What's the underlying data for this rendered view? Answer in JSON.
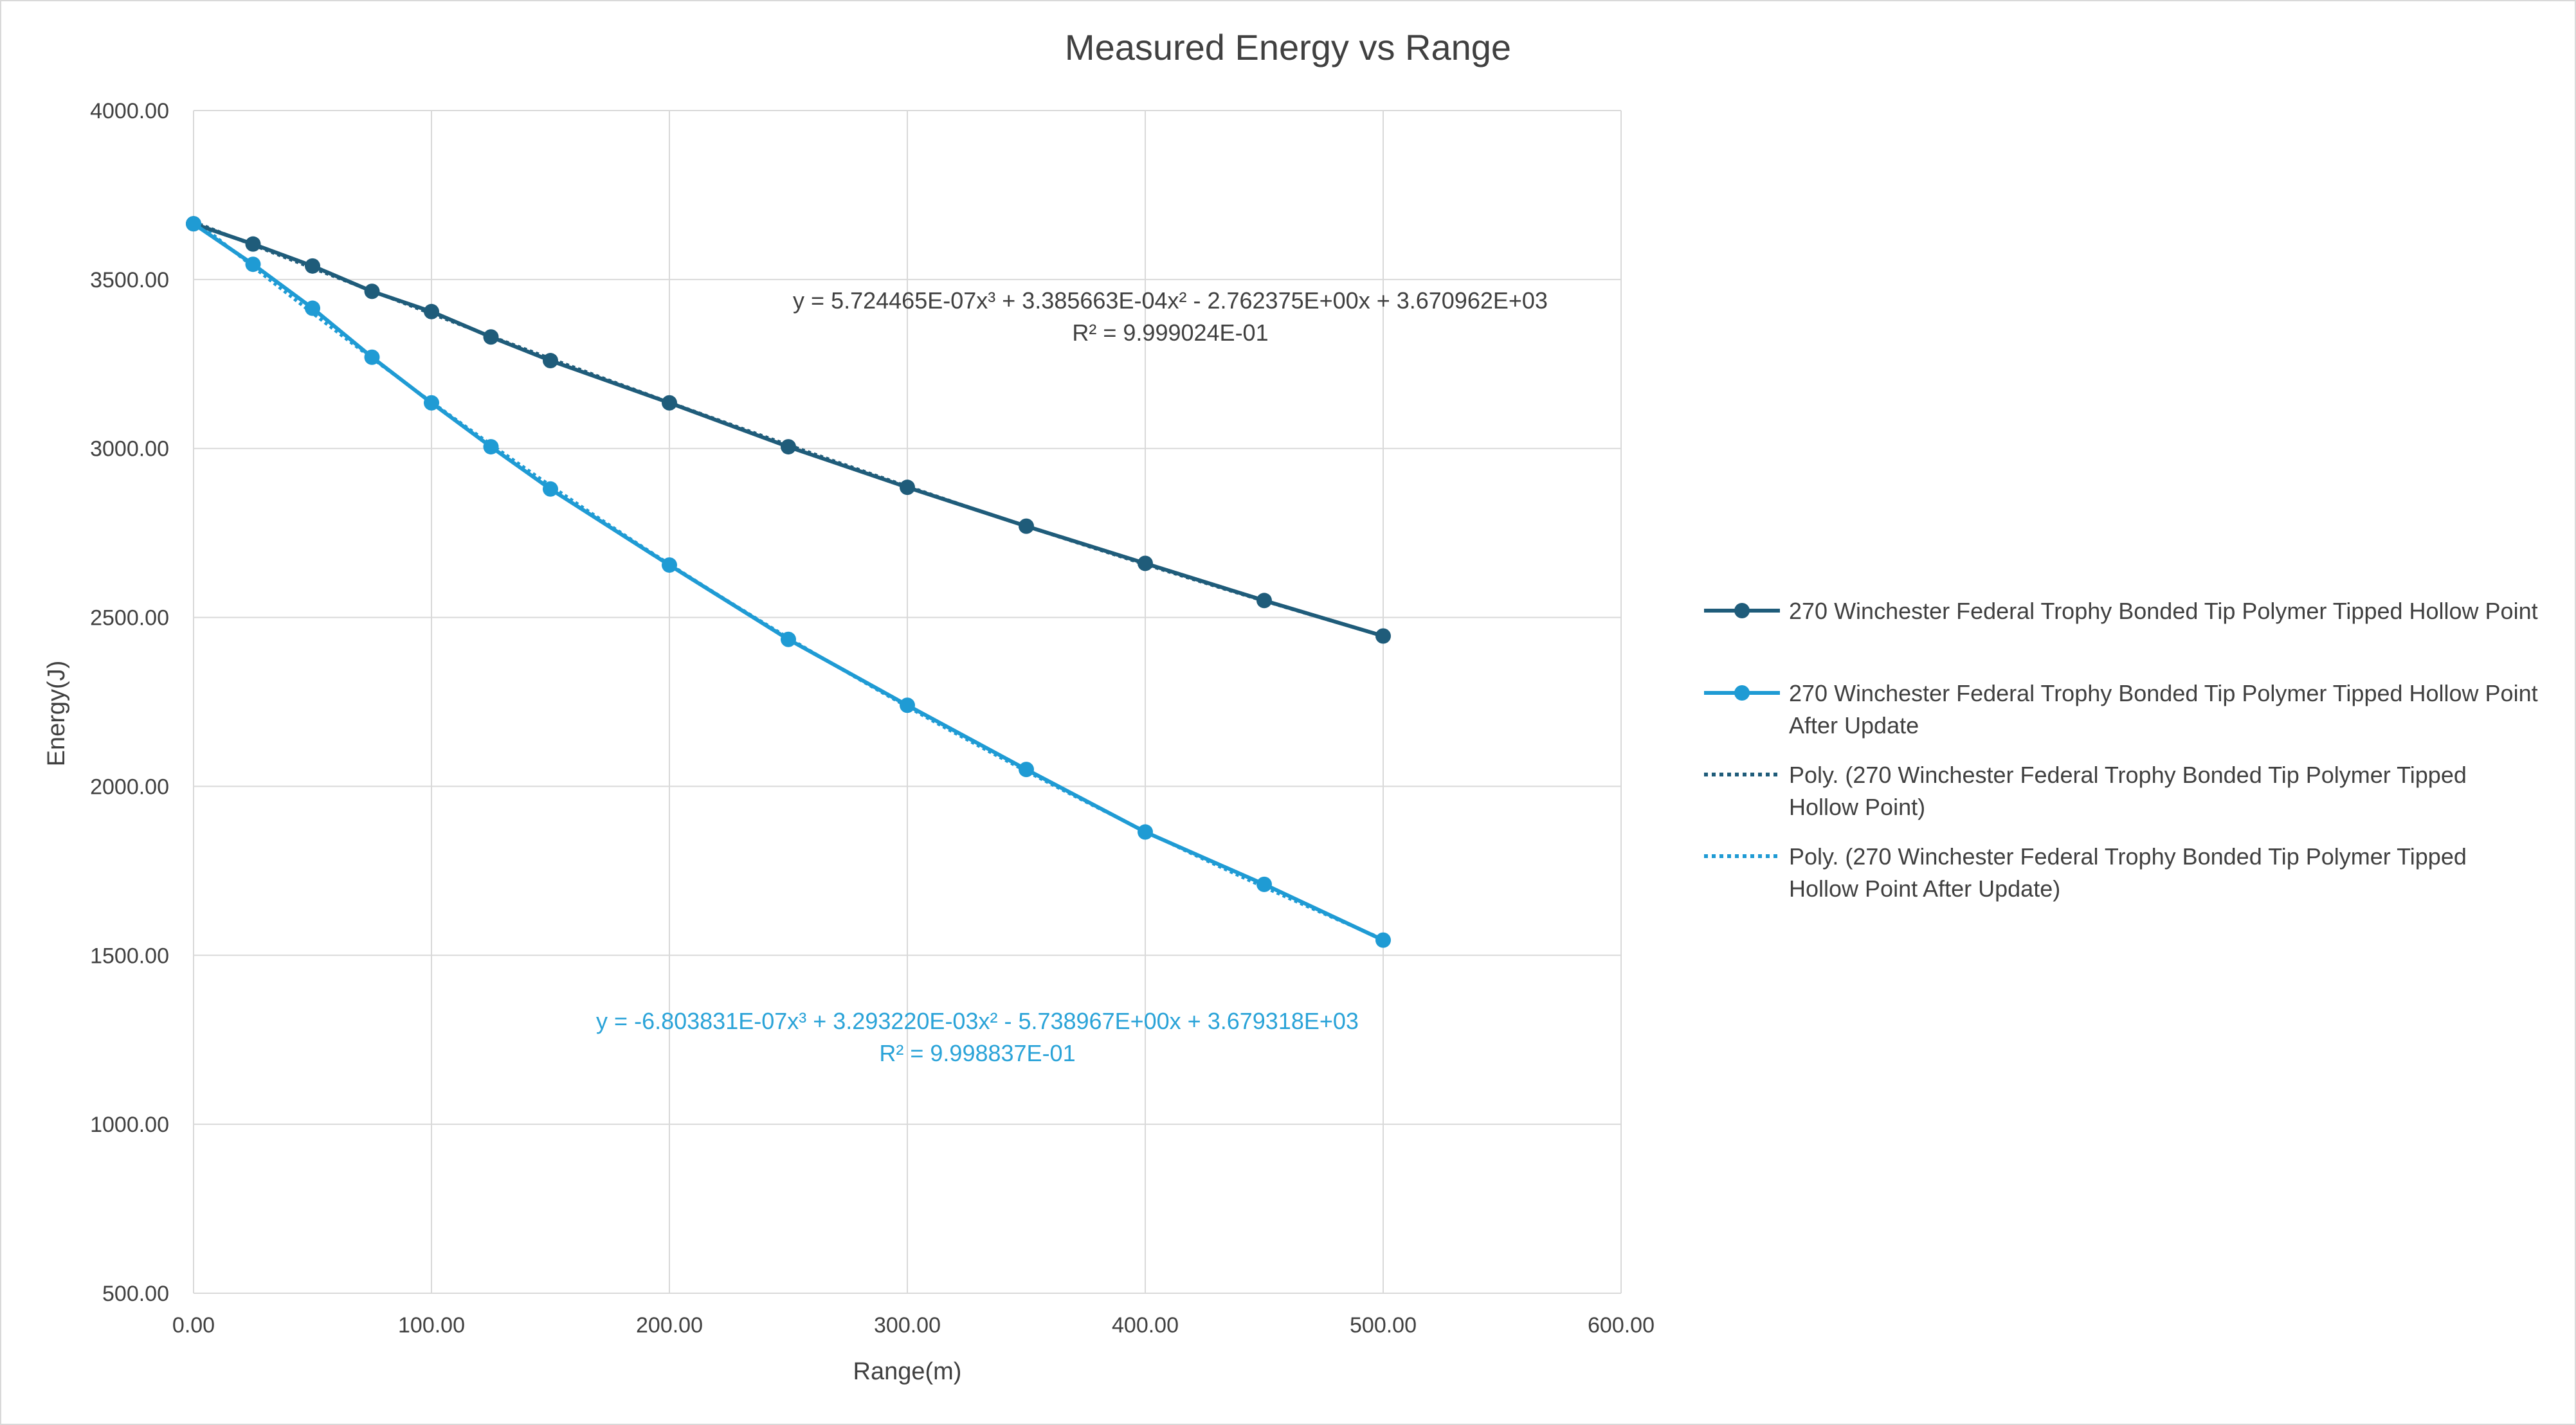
{
  "chart_data": {
    "type": "line",
    "title": "Measured Energy vs Range",
    "xlabel": "Range(m)",
    "ylabel": "Energy(J)",
    "xlim": [
      0,
      600
    ],
    "ylim": [
      500,
      4000
    ],
    "x_ticks": [
      "0.00",
      "100.00",
      "200.00",
      "300.00",
      "400.00",
      "500.00",
      "600.00"
    ],
    "y_ticks": [
      "500.00",
      "1000.00",
      "1500.00",
      "2000.00",
      "2500.00",
      "3000.00",
      "3500.00",
      "4000.00"
    ],
    "grid": true,
    "legend_position": "right",
    "x": [
      0,
      25,
      50,
      75,
      100,
      125,
      150,
      200,
      250,
      300,
      350,
      400,
      450,
      500
    ],
    "series": [
      {
        "name": "270 Winchester Federal Trophy Bonded Tip Polymer Tipped Hollow Point",
        "color": "#1f5c7a",
        "values": [
          3665,
          3605,
          3540,
          3465,
          3405,
          3330,
          3260,
          3135,
          3005,
          2885,
          2770,
          2660,
          2550,
          2445
        ]
      },
      {
        "name": "270 Winchester Federal Trophy Bonded Tip Polymer Tipped Hollow Point After Update",
        "color": "#1f9bd4",
        "values": [
          3665,
          3545,
          3415,
          3270,
          3135,
          3005,
          2880,
          2655,
          2435,
          2240,
          2050,
          1865,
          1710,
          1545
        ]
      }
    ],
    "trendlines": [
      {
        "legend": "Poly. (270 Winchester Federal Trophy Bonded Tip Polymer Tipped Hollow Point)",
        "color": "#1f5c7a",
        "coefficients": [
          3670.962,
          -2.762375,
          0.0003385663,
          5.724465e-07
        ],
        "equation": "y = 5.724465E-07x³ + 3.385663E-04x² - 2.762375E+00x + 3.670962E+03",
        "r2": "R² = 9.999024E-01",
        "label_color": "#404040"
      },
      {
        "legend": "Poly. (270 Winchester Federal Trophy Bonded Tip Polymer Tipped Hollow Point After Update)",
        "color": "#1f9bd4",
        "coefficients": [
          3679.318,
          -5.738967,
          0.00329322,
          -6.803831e-07
        ],
        "equation": "y = -6.803831E-07x³ + 3.293220E-03x² - 5.738967E+00x + 3.679318E+03",
        "r2": "R² = 9.998837E-01",
        "label_color": "#2aa3d8"
      }
    ],
    "legend": {
      "series1_lines": [
        "270 Winchester Federal Trophy Bonded Tip Polymer Tipped Hollow Point"
      ],
      "series2_lines": [
        "270 Winchester Federal Trophy Bonded Tip Polymer Tipped Hollow Point",
        "After Update"
      ],
      "trend1_lines": [
        "Poly. (270 Winchester Federal Trophy Bonded Tip Polymer Tipped",
        "Hollow Point)"
      ],
      "trend2_lines": [
        "Poly. (270 Winchester Federal Trophy Bonded Tip Polymer Tipped",
        "Hollow Point After Update)"
      ]
    }
  }
}
